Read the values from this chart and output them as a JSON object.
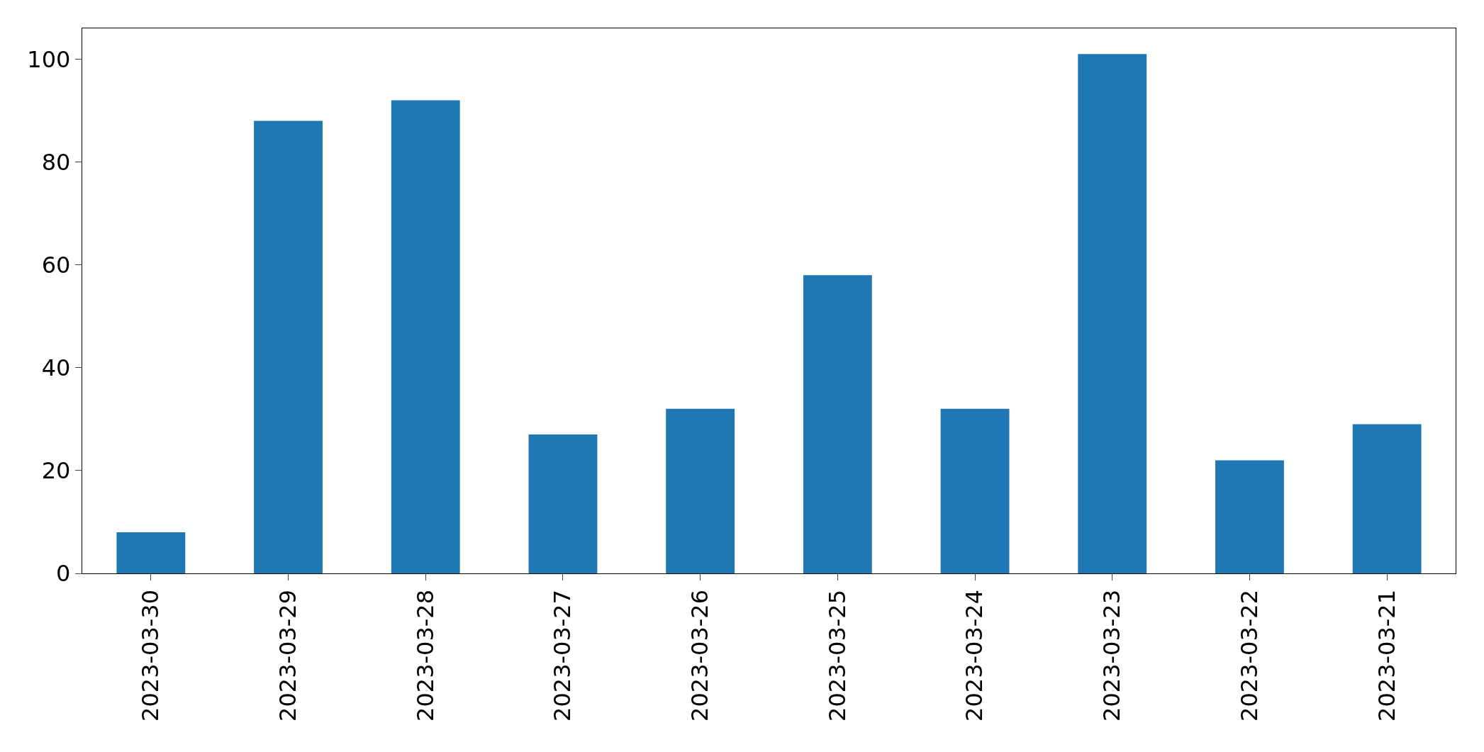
{
  "chart_data": {
    "type": "bar",
    "categories": [
      "2023-03-30",
      "2023-03-29",
      "2023-03-28",
      "2023-03-27",
      "2023-03-26",
      "2023-03-25",
      "2023-03-24",
      "2023-03-23",
      "2023-03-22",
      "2023-03-21"
    ],
    "values": [
      8,
      88,
      92,
      27,
      32,
      58,
      32,
      101,
      22,
      29
    ],
    "color": "#1f77b4",
    "ylim": [
      0,
      106
    ],
    "yticks": [
      0,
      20,
      40,
      60,
      80,
      100
    ],
    "grid": false
  }
}
